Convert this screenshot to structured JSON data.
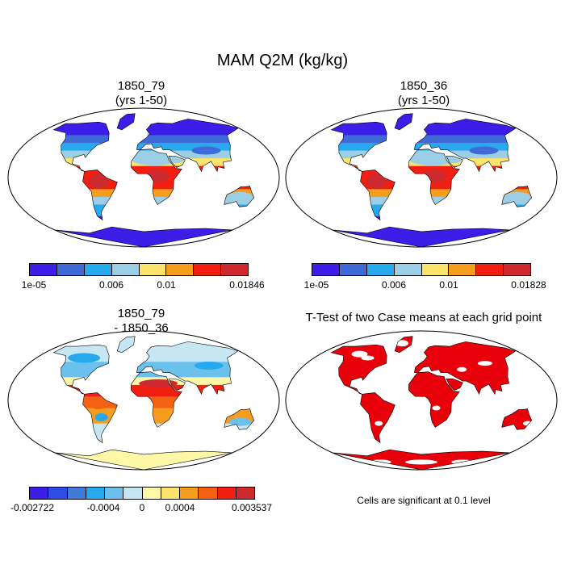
{
  "title": "MAM Q2M (kg/kg)",
  "panels": [
    {
      "title1": "1850_79",
      "title2": "(yrs 1-50)",
      "type": "mean"
    },
    {
      "title1": "1850_36",
      "title2": "(yrs 1-50)",
      "type": "mean"
    },
    {
      "title1": "1850_79",
      "title2": "- 1850_36",
      "type": "diff"
    },
    {
      "title1": "T-Test of two Case means at each grid point",
      "type": "ttest"
    }
  ],
  "colorbars": [
    {
      "colors": [
        "#3c1ee8",
        "#3f6ad8",
        "#28a9ee",
        "#9ccfe6",
        "#fbe46b",
        "#f79d1d",
        "#f01f12",
        "#cc2a2e"
      ],
      "labels": [
        {
          "text": "1e-05"
        },
        {
          "text": "0.006"
        },
        {
          "text": "0.01"
        },
        {
          "text": "0.01846"
        }
      ]
    },
    {
      "colors": [
        "#3c1ee8",
        "#3f6ad8",
        "#28a9ee",
        "#9ccfe6",
        "#fbe46b",
        "#f79d1d",
        "#f01f12",
        "#cc2a2e"
      ],
      "labels": [
        {
          "text": "1e-05"
        },
        {
          "text": "0.006"
        },
        {
          "text": "0.01"
        },
        {
          "text": "0.01828"
        }
      ]
    },
    {
      "colors": [
        "#3c1ee8",
        "#2d4ee5",
        "#3f7ad8",
        "#28a9ee",
        "#6cc0ec",
        "#c7e6f4",
        "#fff7a8",
        "#fbe46b",
        "#f79d1d",
        "#f46014",
        "#f01f12",
        "#cc2a2e"
      ],
      "labels": [
        {
          "text": "-0.002722"
        },
        {
          "text": "-0.0004"
        },
        {
          "text": "0"
        },
        {
          "text": "0.0004"
        },
        {
          "text": "0.003537"
        }
      ]
    }
  ],
  "significance_note": "Cells are significant at 0.1 level",
  "significance_color": "#e8000b"
}
